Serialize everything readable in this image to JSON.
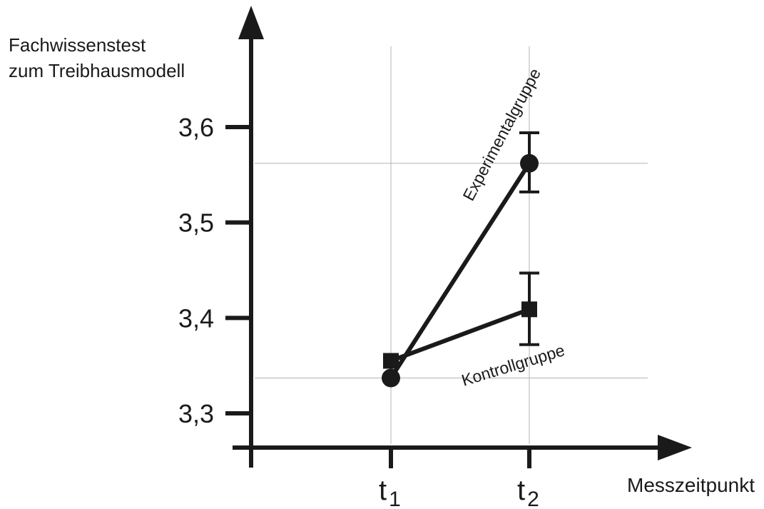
{
  "chart_data": {
    "type": "line",
    "ylabel_lines": [
      "Fachwissenstest",
      "zum Treibhausmodell"
    ],
    "xlabel": "Messzeitpunkt",
    "categories": [
      {
        "base": "t",
        "sub": "1"
      },
      {
        "base": "t",
        "sub": "2"
      }
    ],
    "yticks": [
      {
        "value": 3.3,
        "label": "3,3"
      },
      {
        "value": 3.4,
        "label": "3,4"
      },
      {
        "value": 3.5,
        "label": "3,5"
      },
      {
        "value": 3.6,
        "label": "3,6"
      }
    ],
    "ylim": [
      3.265,
      3.72
    ],
    "reference_lines": [
      3.562,
      3.337
    ],
    "grid": "vertical lines at categories, horizontal reference lines",
    "series": [
      {
        "name": "Experimentalgruppe",
        "marker": "circle",
        "values": [
          3.337,
          3.562
        ],
        "error_bars": [
          null,
          {
            "low": 3.532,
            "high": 3.594
          }
        ]
      },
      {
        "name": "Kontrollgruppe",
        "marker": "square",
        "values": [
          3.355,
          3.409
        ],
        "error_bars": [
          null,
          {
            "low": 3.372,
            "high": 3.447
          }
        ]
      }
    ],
    "colors": {
      "ink": "#1a1a1a",
      "grid": "#b3b3b3"
    }
  }
}
